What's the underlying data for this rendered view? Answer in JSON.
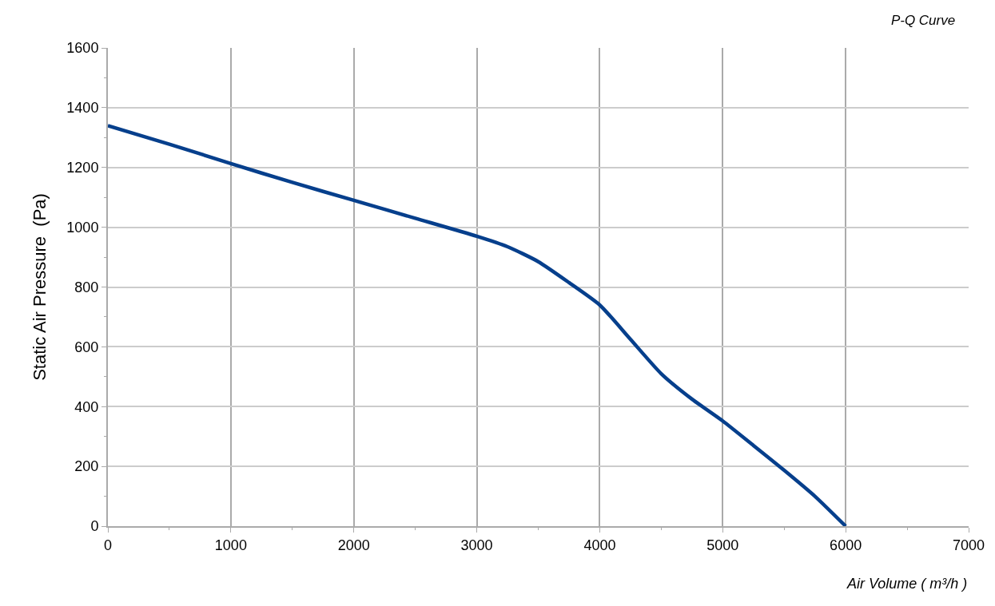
{
  "chart_data": {
    "type": "line",
    "title": "P-Q Curve",
    "xlabel": "Air Volume ( m³/h )",
    "ylabel": "Static Air Pressure  (Pa)",
    "x": [
      0,
      500,
      1000,
      1500,
      2000,
      2500,
      3000,
      3250,
      3500,
      3750,
      4000,
      4250,
      4500,
      4750,
      5000,
      5250,
      5500,
      5750,
      6000
    ],
    "series": [
      {
        "color": "#063f8c",
        "values": [
          1340,
          1278,
          1213,
          1150,
          1090,
          1030,
          970,
          935,
          885,
          815,
          740,
          625,
          510,
          425,
          352,
          270,
          187,
          100,
          0
        ]
      }
    ],
    "xlim": [
      0,
      7000
    ],
    "xticks": [
      0,
      1000,
      2000,
      3000,
      4000,
      5000,
      6000,
      7000
    ],
    "ylim": [
      0,
      1600
    ],
    "yticks": [
      0,
      200,
      400,
      600,
      800,
      1000,
      1200,
      1400,
      1600
    ],
    "grid": true,
    "marker": "none",
    "line_style": "solid",
    "legend": false
  }
}
